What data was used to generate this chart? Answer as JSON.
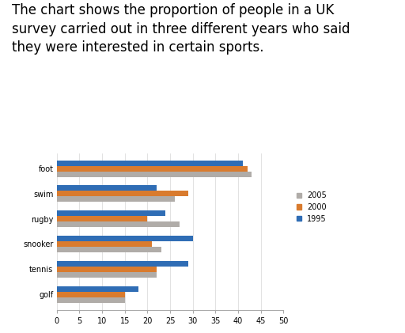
{
  "title_lines": [
    "The chart shows the proportion of people in a UK",
    "survey carried out in three different years who said",
    "they were interested in certain sports."
  ],
  "categories": [
    "foot",
    "swim",
    "rugby",
    "snooker",
    "tennis",
    "golf"
  ],
  "series": {
    "2005": [
      43,
      26,
      27,
      23,
      22,
      15
    ],
    "2000": [
      42,
      29,
      20,
      21,
      22,
      15
    ],
    "1995": [
      41,
      22,
      24,
      30,
      29,
      18
    ]
  },
  "colors": {
    "2005": "#b0aca8",
    "2000": "#d97b2e",
    "1995": "#2f6db5"
  },
  "xlim": [
    0,
    50
  ],
  "xticks": [
    0,
    5,
    10,
    15,
    20,
    25,
    30,
    35,
    40,
    45,
    50
  ],
  "background_color": "#ffffff",
  "bar_height": 0.22,
  "title_fontsize": 12,
  "tick_fontsize": 7,
  "label_fontsize": 7,
  "legend_fontsize": 7
}
